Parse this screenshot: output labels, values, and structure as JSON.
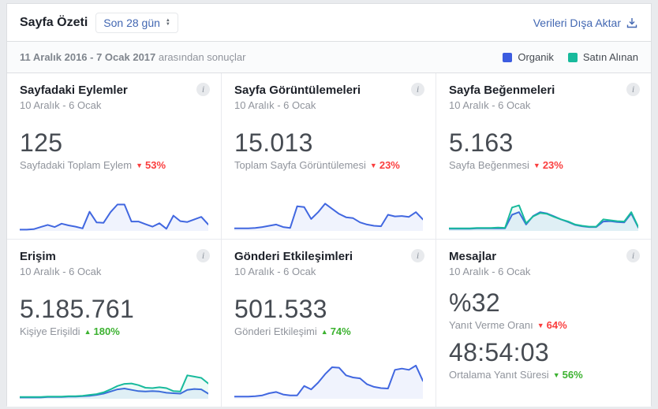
{
  "header": {
    "title": "Sayfa Özeti",
    "range_selector": "Son 28 gün",
    "export_label": "Verileri Dışa Aktar"
  },
  "subheader": {
    "results_bold": "11 Aralık 2016 - 7 Ocak 2017",
    "results_rest": " arasından sonuçlar",
    "legend": [
      {
        "label": "Organik",
        "color": "#3c5ce0"
      },
      {
        "label": "Satın Alınan",
        "color": "#18ba9c"
      }
    ]
  },
  "icons": {
    "info": "i",
    "sort_up": "▲",
    "sort_down": "▼"
  },
  "colors": {
    "organic": "#4167e0",
    "paid": "#18ba9c",
    "positive": "#3cb230",
    "negative": "#fa3e3e",
    "link": "#4267b2"
  },
  "cards": [
    {
      "title": "Sayfadaki Eylemler",
      "date_range": "10 Aralık - 6 Ocak",
      "metrics": [
        {
          "value": "125",
          "label": "Sayfadaki Toplam Eylem",
          "change": "53%",
          "trend": "down",
          "sentiment": "negative"
        }
      ]
    },
    {
      "title": "Sayfa Görüntülemeleri",
      "date_range": "10 Aralık - 6 Ocak",
      "metrics": [
        {
          "value": "15.013",
          "label": "Toplam Sayfa Görüntülemesi",
          "change": "23%",
          "trend": "down",
          "sentiment": "negative"
        }
      ]
    },
    {
      "title": "Sayfa Beğenmeleri",
      "date_range": "10 Aralık - 6 Ocak",
      "metrics": [
        {
          "value": "5.163",
          "label": "Sayfa Beğenmesi",
          "change": "23%",
          "trend": "down",
          "sentiment": "negative"
        }
      ]
    },
    {
      "title": "Erişim",
      "date_range": "10 Aralık - 6 Ocak",
      "metrics": [
        {
          "value": "5.185.761",
          "label": "Kişiye Erişildi",
          "change": "180%",
          "trend": "up",
          "sentiment": "positive"
        }
      ]
    },
    {
      "title": "Gönderi Etkileşimleri",
      "date_range": "10 Aralık - 6 Ocak",
      "metrics": [
        {
          "value": "501.533",
          "label": "Gönderi Etkileşimi",
          "change": "74%",
          "trend": "up",
          "sentiment": "positive"
        }
      ]
    },
    {
      "title": "Mesajlar",
      "date_range": "10 Aralık - 6 Ocak",
      "metrics": [
        {
          "value": "%32",
          "label": "Yanıt Verme Oranı",
          "change": "64%",
          "trend": "down",
          "sentiment": "negative"
        },
        {
          "value": "48:54:03",
          "label": "Ortalama Yanıt Süresi",
          "change": "56%",
          "trend": "down",
          "sentiment": "positive"
        }
      ]
    }
  ],
  "chart_data": {
    "note": "Sparklines have no visible axes; y-values are relative heights 0-100 estimated from pixels; x spans 28 days, 10 Aralık - 6 Ocak; legend: Organik (blue), Satın Alınan (teal)",
    "actions": {
      "type": "area",
      "title": "Sayfadaki Eylemler",
      "x_range": [
        "10 Aralık",
        "6 Ocak"
      ],
      "ylim": [
        0,
        100
      ],
      "series": [
        {
          "name": "Organik",
          "color": "organic",
          "values": [
            3,
            3,
            4,
            9,
            14,
            9,
            17,
            13,
            10,
            6,
            45,
            20,
            19,
            44,
            62,
            62,
            22,
            22,
            16,
            10,
            18,
            5,
            36,
            23,
            21,
            27,
            33,
            15
          ]
        }
      ]
    },
    "views": {
      "type": "area",
      "title": "Sayfa Görüntülemeleri",
      "x_range": [
        "10 Aralık",
        "6 Ocak"
      ],
      "ylim": [
        0,
        100
      ],
      "series": [
        {
          "name": "Organik",
          "color": "organic",
          "values": [
            6,
            6,
            6,
            7,
            9,
            12,
            15,
            9,
            7,
            58,
            56,
            28,
            44,
            64,
            52,
            40,
            32,
            30,
            20,
            15,
            12,
            11,
            38,
            34,
            35,
            33,
            44,
            27
          ]
        }
      ]
    },
    "likes": {
      "type": "area",
      "title": "Sayfa Beğenmeleri",
      "x_range": [
        "10 Aralık",
        "6 Ocak"
      ],
      "ylim": [
        0,
        100
      ],
      "series": [
        {
          "name": "Organik",
          "color": "organic",
          "values": [
            5,
            5,
            5,
            5,
            6,
            6,
            6,
            6,
            6,
            38,
            44,
            15,
            35,
            44,
            41,
            34,
            27,
            21,
            14,
            11,
            9,
            9,
            22,
            23,
            21,
            20,
            41,
            8
          ]
        },
        {
          "name": "Satın Alınan",
          "color": "paid",
          "values": [
            6,
            6,
            6,
            6,
            7,
            7,
            7,
            8,
            7,
            55,
            60,
            18,
            34,
            42,
            40,
            33,
            27,
            22,
            15,
            12,
            10,
            10,
            27,
            25,
            23,
            22,
            44,
            9
          ]
        }
      ]
    },
    "reach": {
      "type": "area",
      "title": "Erişim",
      "x_range": [
        "10 Aralık",
        "6 Ocak"
      ],
      "ylim": [
        0,
        100
      ],
      "series": [
        {
          "name": "Organik",
          "color": "organic",
          "values": [
            3,
            3,
            3,
            3,
            4,
            4,
            4,
            5,
            5,
            6,
            7,
            9,
            12,
            17,
            22,
            24,
            21,
            18,
            17,
            18,
            17,
            14,
            13,
            12,
            21,
            23,
            22,
            12
          ]
        },
        {
          "name": "Satın Alınan",
          "color": "paid",
          "values": [
            4,
            4,
            4,
            4,
            5,
            5,
            5,
            6,
            6,
            7,
            9,
            11,
            15,
            22,
            30,
            35,
            36,
            32,
            26,
            25,
            27,
            25,
            18,
            17,
            55,
            52,
            49,
            36
          ]
        }
      ]
    },
    "engagement": {
      "type": "area",
      "title": "Gönderi Etkileşimleri",
      "x_range": [
        "10 Aralık",
        "6 Ocak"
      ],
      "ylim": [
        0,
        100
      ],
      "series": [
        {
          "name": "Organik",
          "color": "organic",
          "values": [
            5,
            5,
            5,
            6,
            8,
            13,
            16,
            10,
            8,
            8,
            30,
            22,
            38,
            58,
            74,
            73,
            55,
            50,
            48,
            34,
            28,
            25,
            24,
            68,
            71,
            68,
            78,
            42
          ]
        }
      ]
    }
  }
}
